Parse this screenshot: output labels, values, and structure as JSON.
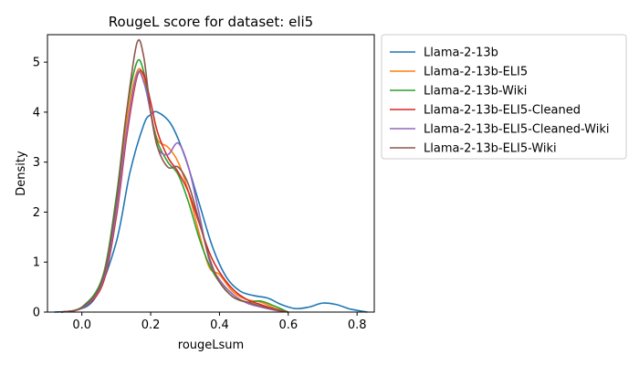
{
  "chart_data": {
    "type": "line",
    "title": "RougeL score for dataset: eli5",
    "xlabel": "rougeLsum",
    "ylabel": "Density",
    "xlim": [
      -0.1,
      0.85
    ],
    "ylim": [
      0,
      5.55
    ],
    "xticks": [
      {
        "value": 0.0,
        "label": "0.0"
      },
      {
        "value": 0.2,
        "label": "0.2"
      },
      {
        "value": 0.4,
        "label": "0.4"
      },
      {
        "value": 0.6,
        "label": "0.6"
      },
      {
        "value": 0.8,
        "label": "0.8"
      }
    ],
    "yticks": [
      {
        "value": 0,
        "label": "0"
      },
      {
        "value": 1,
        "label": "1"
      },
      {
        "value": 2,
        "label": "2"
      },
      {
        "value": 3,
        "label": "3"
      },
      {
        "value": 4,
        "label": "4"
      },
      {
        "value": 5,
        "label": "5"
      }
    ],
    "grid": false,
    "legend_position": "outside-right",
    "series": [
      {
        "name": "Llama-2-13b",
        "color": "#1f77b4",
        "x": [
          -0.08,
          -0.02,
          0.04,
          0.1,
          0.14,
          0.18,
          0.2,
          0.22,
          0.26,
          0.3,
          0.34,
          0.38,
          0.42,
          0.46,
          0.5,
          0.54,
          0.58,
          0.62,
          0.66,
          0.7,
          0.74,
          0.78,
          0.83
        ],
        "y": [
          0.0,
          0.03,
          0.3,
          1.4,
          2.8,
          3.75,
          3.95,
          4.0,
          3.75,
          3.1,
          2.2,
          1.3,
          0.7,
          0.42,
          0.33,
          0.28,
          0.15,
          0.07,
          0.1,
          0.18,
          0.15,
          0.06,
          0.0
        ]
      },
      {
        "name": "Llama-2-13b-ELI5",
        "color": "#ff7f0e",
        "x": [
          -0.06,
          0.0,
          0.06,
          0.1,
          0.13,
          0.16,
          0.18,
          0.2,
          0.22,
          0.25,
          0.28,
          0.31,
          0.34,
          0.37,
          0.4,
          0.44,
          0.48,
          0.52,
          0.56,
          0.6
        ],
        "y": [
          0.0,
          0.08,
          0.6,
          2.1,
          3.8,
          4.8,
          4.7,
          4.0,
          3.45,
          3.3,
          3.0,
          2.4,
          1.6,
          0.9,
          0.75,
          0.4,
          0.25,
          0.2,
          0.08,
          0.0
        ]
      },
      {
        "name": "Llama-2-13b-Wiki",
        "color": "#2ca02c",
        "x": [
          -0.06,
          0.0,
          0.06,
          0.1,
          0.13,
          0.16,
          0.18,
          0.2,
          0.22,
          0.25,
          0.28,
          0.31,
          0.34,
          0.37,
          0.4,
          0.44,
          0.48,
          0.52,
          0.56,
          0.6
        ],
        "y": [
          0.0,
          0.1,
          0.7,
          2.3,
          4.0,
          5.0,
          4.8,
          4.0,
          3.4,
          3.0,
          2.75,
          2.2,
          1.5,
          0.95,
          0.6,
          0.3,
          0.2,
          0.22,
          0.12,
          0.0
        ]
      },
      {
        "name": "Llama-2-13b-ELI5-Cleaned",
        "color": "#d62728",
        "x": [
          -0.06,
          0.0,
          0.06,
          0.1,
          0.13,
          0.16,
          0.18,
          0.2,
          0.22,
          0.25,
          0.28,
          0.31,
          0.34,
          0.37,
          0.4,
          0.44,
          0.48,
          0.52,
          0.56,
          0.6
        ],
        "y": [
          0.0,
          0.08,
          0.55,
          1.9,
          3.5,
          4.7,
          4.75,
          4.2,
          3.6,
          3.1,
          2.8,
          2.4,
          1.8,
          1.2,
          0.8,
          0.45,
          0.25,
          0.15,
          0.06,
          0.0
        ]
      },
      {
        "name": "Llama-2-13b-ELI5-Cleaned-Wiki",
        "color": "#9467bd",
        "x": [
          -0.06,
          0.0,
          0.06,
          0.1,
          0.13,
          0.16,
          0.18,
          0.2,
          0.22,
          0.25,
          0.28,
          0.31,
          0.34,
          0.37,
          0.4,
          0.44,
          0.48,
          0.52,
          0.56,
          0.6
        ],
        "y": [
          0.0,
          0.08,
          0.6,
          2.0,
          3.6,
          4.75,
          4.6,
          4.0,
          3.3,
          3.15,
          3.38,
          2.9,
          2.0,
          1.05,
          0.65,
          0.35,
          0.18,
          0.1,
          0.04,
          0.0
        ]
      },
      {
        "name": "Llama-2-13b-ELI5-Wiki",
        "color": "#8c564b",
        "x": [
          -0.06,
          0.0,
          0.06,
          0.1,
          0.13,
          0.16,
          0.18,
          0.2,
          0.22,
          0.25,
          0.28,
          0.31,
          0.34,
          0.37,
          0.4,
          0.44,
          0.48,
          0.52,
          0.56,
          0.6
        ],
        "y": [
          0.0,
          0.09,
          0.65,
          2.2,
          4.0,
          5.38,
          5.1,
          4.0,
          3.3,
          2.9,
          2.9,
          2.55,
          1.85,
          1.1,
          0.6,
          0.3,
          0.2,
          0.12,
          0.05,
          0.0
        ]
      }
    ]
  }
}
